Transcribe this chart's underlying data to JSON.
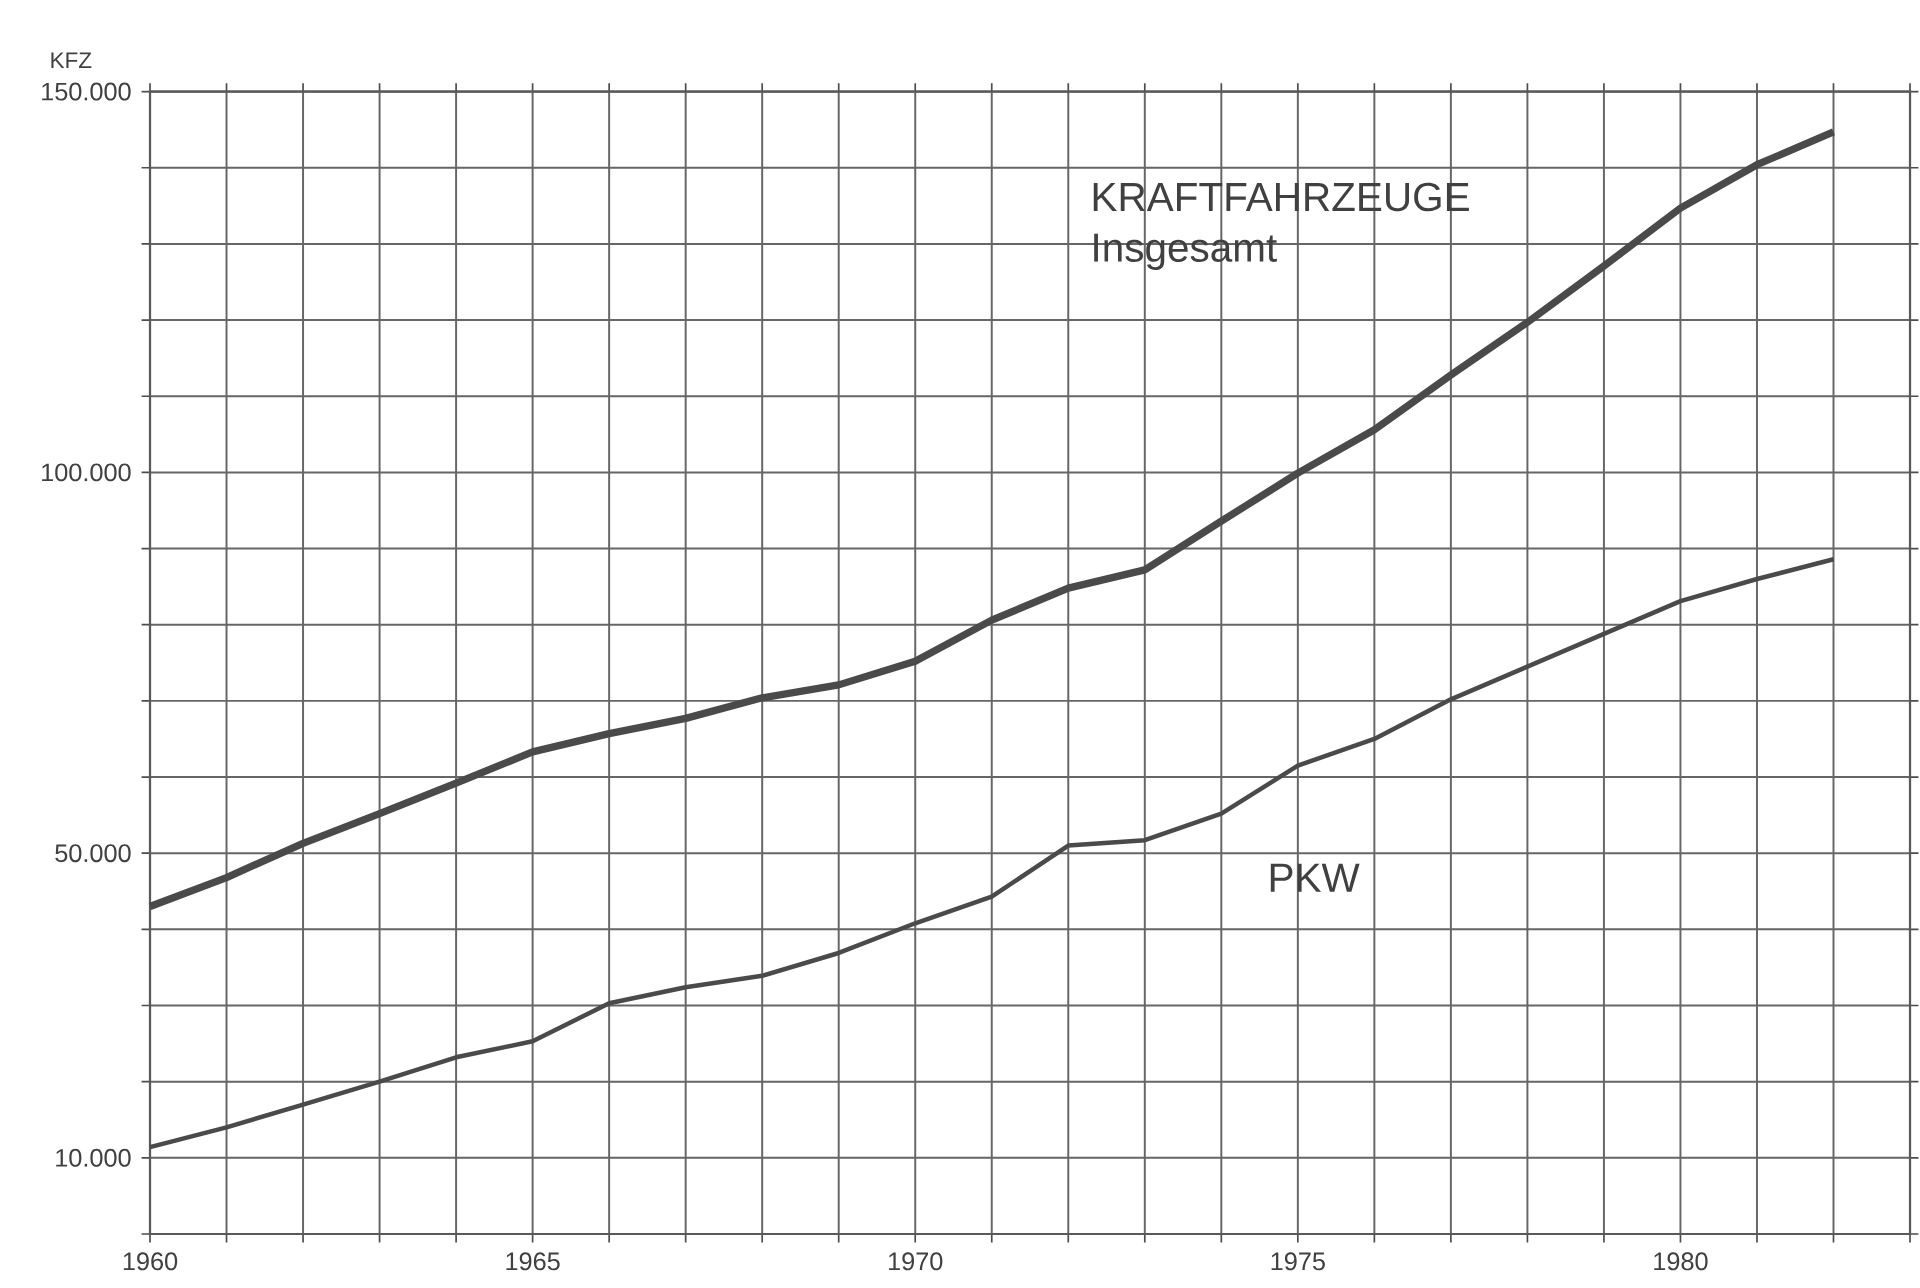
{
  "chart_data": {
    "type": "line",
    "ylabel": "KFZ",
    "x": [
      1960,
      1961,
      1962,
      1963,
      1964,
      1965,
      1966,
      1967,
      1968,
      1969,
      1970,
      1971,
      1972,
      1973,
      1974,
      1975,
      1976,
      1977,
      1978,
      1979,
      1980,
      1981,
      1982
    ],
    "series": [
      {
        "name": "KRAFTFAHRZEUGE Insgesamt",
        "color": "#4a4a4a",
        "values": [
          43000,
          46800,
          51300,
          55200,
          59200,
          63300,
          65700,
          67700,
          70400,
          72100,
          75200,
          80600,
          84800,
          87200,
          93600,
          99900,
          105600,
          112800,
          119700,
          127100,
          134700,
          140400,
          144700
        ]
      },
      {
        "name": "PKW",
        "color": "#4a4a4a",
        "values": [
          11400,
          14000,
          17000,
          20000,
          23200,
          25300,
          30300,
          32400,
          33900,
          36900,
          40800,
          44300,
          51000,
          51700,
          55200,
          61500,
          65000,
          70200,
          74500,
          78800,
          83100,
          86000,
          88600
        ]
      }
    ],
    "xlim": [
      1960,
      1983
    ],
    "ylim": [
      0,
      150000
    ],
    "xticks": [
      1960,
      {
        "value": 1961,
        "label": null
      },
      {
        "value": 1962,
        "label": null
      },
      {
        "value": 1963,
        "label": null
      },
      {
        "value": 1964,
        "label": null
      },
      1965,
      {
        "value": 1966,
        "label": null
      },
      {
        "value": 1967,
        "label": null
      },
      {
        "value": 1968,
        "label": null
      },
      {
        "value": 1969,
        "label": null
      },
      1970,
      {
        "value": 1971,
        "label": null
      },
      {
        "value": 1972,
        "label": null
      },
      {
        "value": 1973,
        "label": null
      },
      {
        "value": 1974,
        "label": null
      },
      1975,
      {
        "value": 1976,
        "label": null
      },
      {
        "value": 1977,
        "label": null
      },
      {
        "value": 1978,
        "label": null
      },
      {
        "value": 1979,
        "label": null
      },
      1980,
      {
        "value": 1981,
        "label": null
      },
      {
        "value": 1982,
        "label": null
      },
      {
        "value": 1983,
        "label": null
      }
    ],
    "yticks": [
      {
        "value": 0,
        "label": null
      },
      {
        "value": 10000,
        "label": "10.000"
      },
      {
        "value": 20000,
        "label": null
      },
      {
        "value": 30000,
        "label": null
      },
      {
        "value": 40000,
        "label": null
      },
      {
        "value": 50000,
        "label": "50.000"
      },
      {
        "value": 60000,
        "label": null
      },
      {
        "value": 70000,
        "label": null
      },
      {
        "value": 80000,
        "label": null
      },
      {
        "value": 90000,
        "label": null
      },
      {
        "value": 100000,
        "label": "100.000"
      },
      {
        "value": 110000,
        "label": null
      },
      {
        "value": 120000,
        "label": null
      },
      {
        "value": 130000,
        "label": null
      },
      {
        "value": 140000,
        "label": null
      },
      {
        "value": 150000,
        "label": "150.000"
      }
    ],
    "grid": true
  }
}
